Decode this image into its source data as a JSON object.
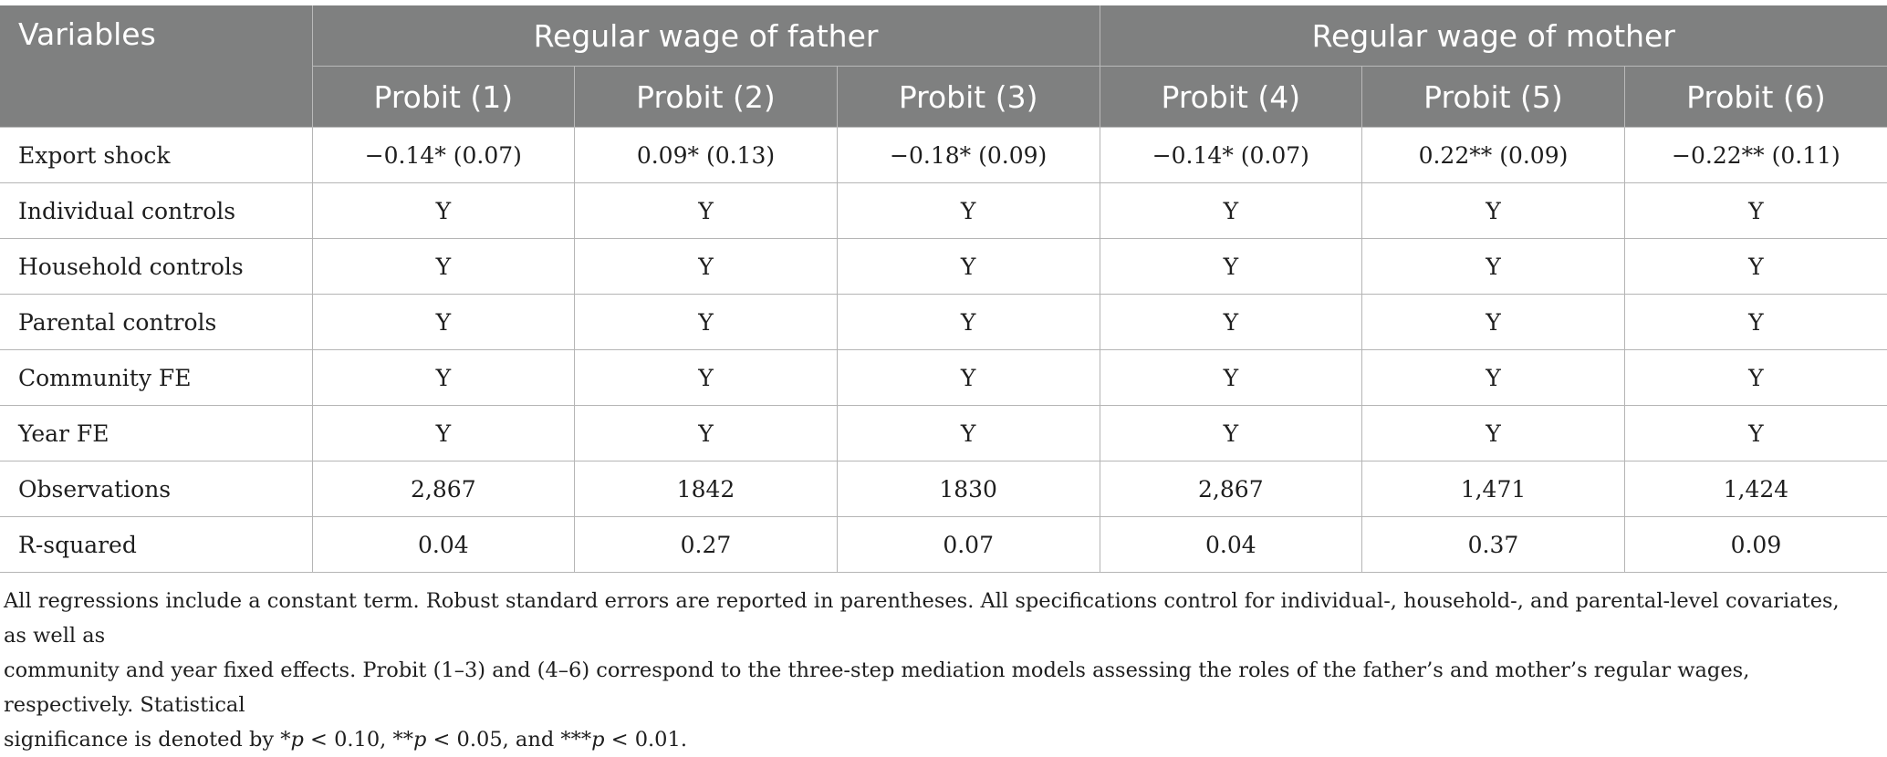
{
  "table": {
    "variables_header": "Variables",
    "group_headers": [
      "Regular wage of father",
      "Regular wage of mother"
    ],
    "model_headers": [
      "Probit (1)",
      "Probit (2)",
      "Probit (3)",
      "Probit (4)",
      "Probit (5)",
      "Probit (6)"
    ],
    "rows": [
      {
        "label": "Export shock",
        "cells": [
          "−0.14* (0.07)",
          "0.09* (0.13)",
          "−0.18* (0.09)",
          "−0.14* (0.07)",
          "0.22** (0.09)",
          "−0.22** (0.11)"
        ]
      },
      {
        "label": "Individual controls",
        "cells": [
          "Y",
          "Y",
          "Y",
          "Y",
          "Y",
          "Y"
        ]
      },
      {
        "label": "Household controls",
        "cells": [
          "Y",
          "Y",
          "Y",
          "Y",
          "Y",
          "Y"
        ]
      },
      {
        "label": "Parental controls",
        "cells": [
          "Y",
          "Y",
          "Y",
          "Y",
          "Y",
          "Y"
        ]
      },
      {
        "label": "Community FE",
        "cells": [
          "Y",
          "Y",
          "Y",
          "Y",
          "Y",
          "Y"
        ]
      },
      {
        "label": "Year FE",
        "cells": [
          "Y",
          "Y",
          "Y",
          "Y",
          "Y",
          "Y"
        ]
      },
      {
        "label": "Observations",
        "cells": [
          "2,867",
          "1842",
          "1830",
          "2,867",
          "1,471",
          "1,424"
        ]
      },
      {
        "label": "R-squared",
        "cells": [
          "0.04",
          "0.27",
          "0.07",
          "0.04",
          "0.37",
          "0.09"
        ]
      }
    ]
  },
  "note": {
    "line1": "All regressions include a constant term. Robust standard errors are reported in parentheses. All specifications control for individual-, household-, and parental-level covariates, as well as",
    "line2": "community and year fixed effects. Probit (1–3) and (4–6) correspond to the three-step mediation models assessing the roles of the father’s and mother’s regular wages, respectively. Statistical",
    "line3_prefix": "significance is denoted by *",
    "p_symbol": "p",
    "t1": " < 0.10, **",
    "t2": " < 0.05, and ***",
    "t3": " < 0.01."
  }
}
